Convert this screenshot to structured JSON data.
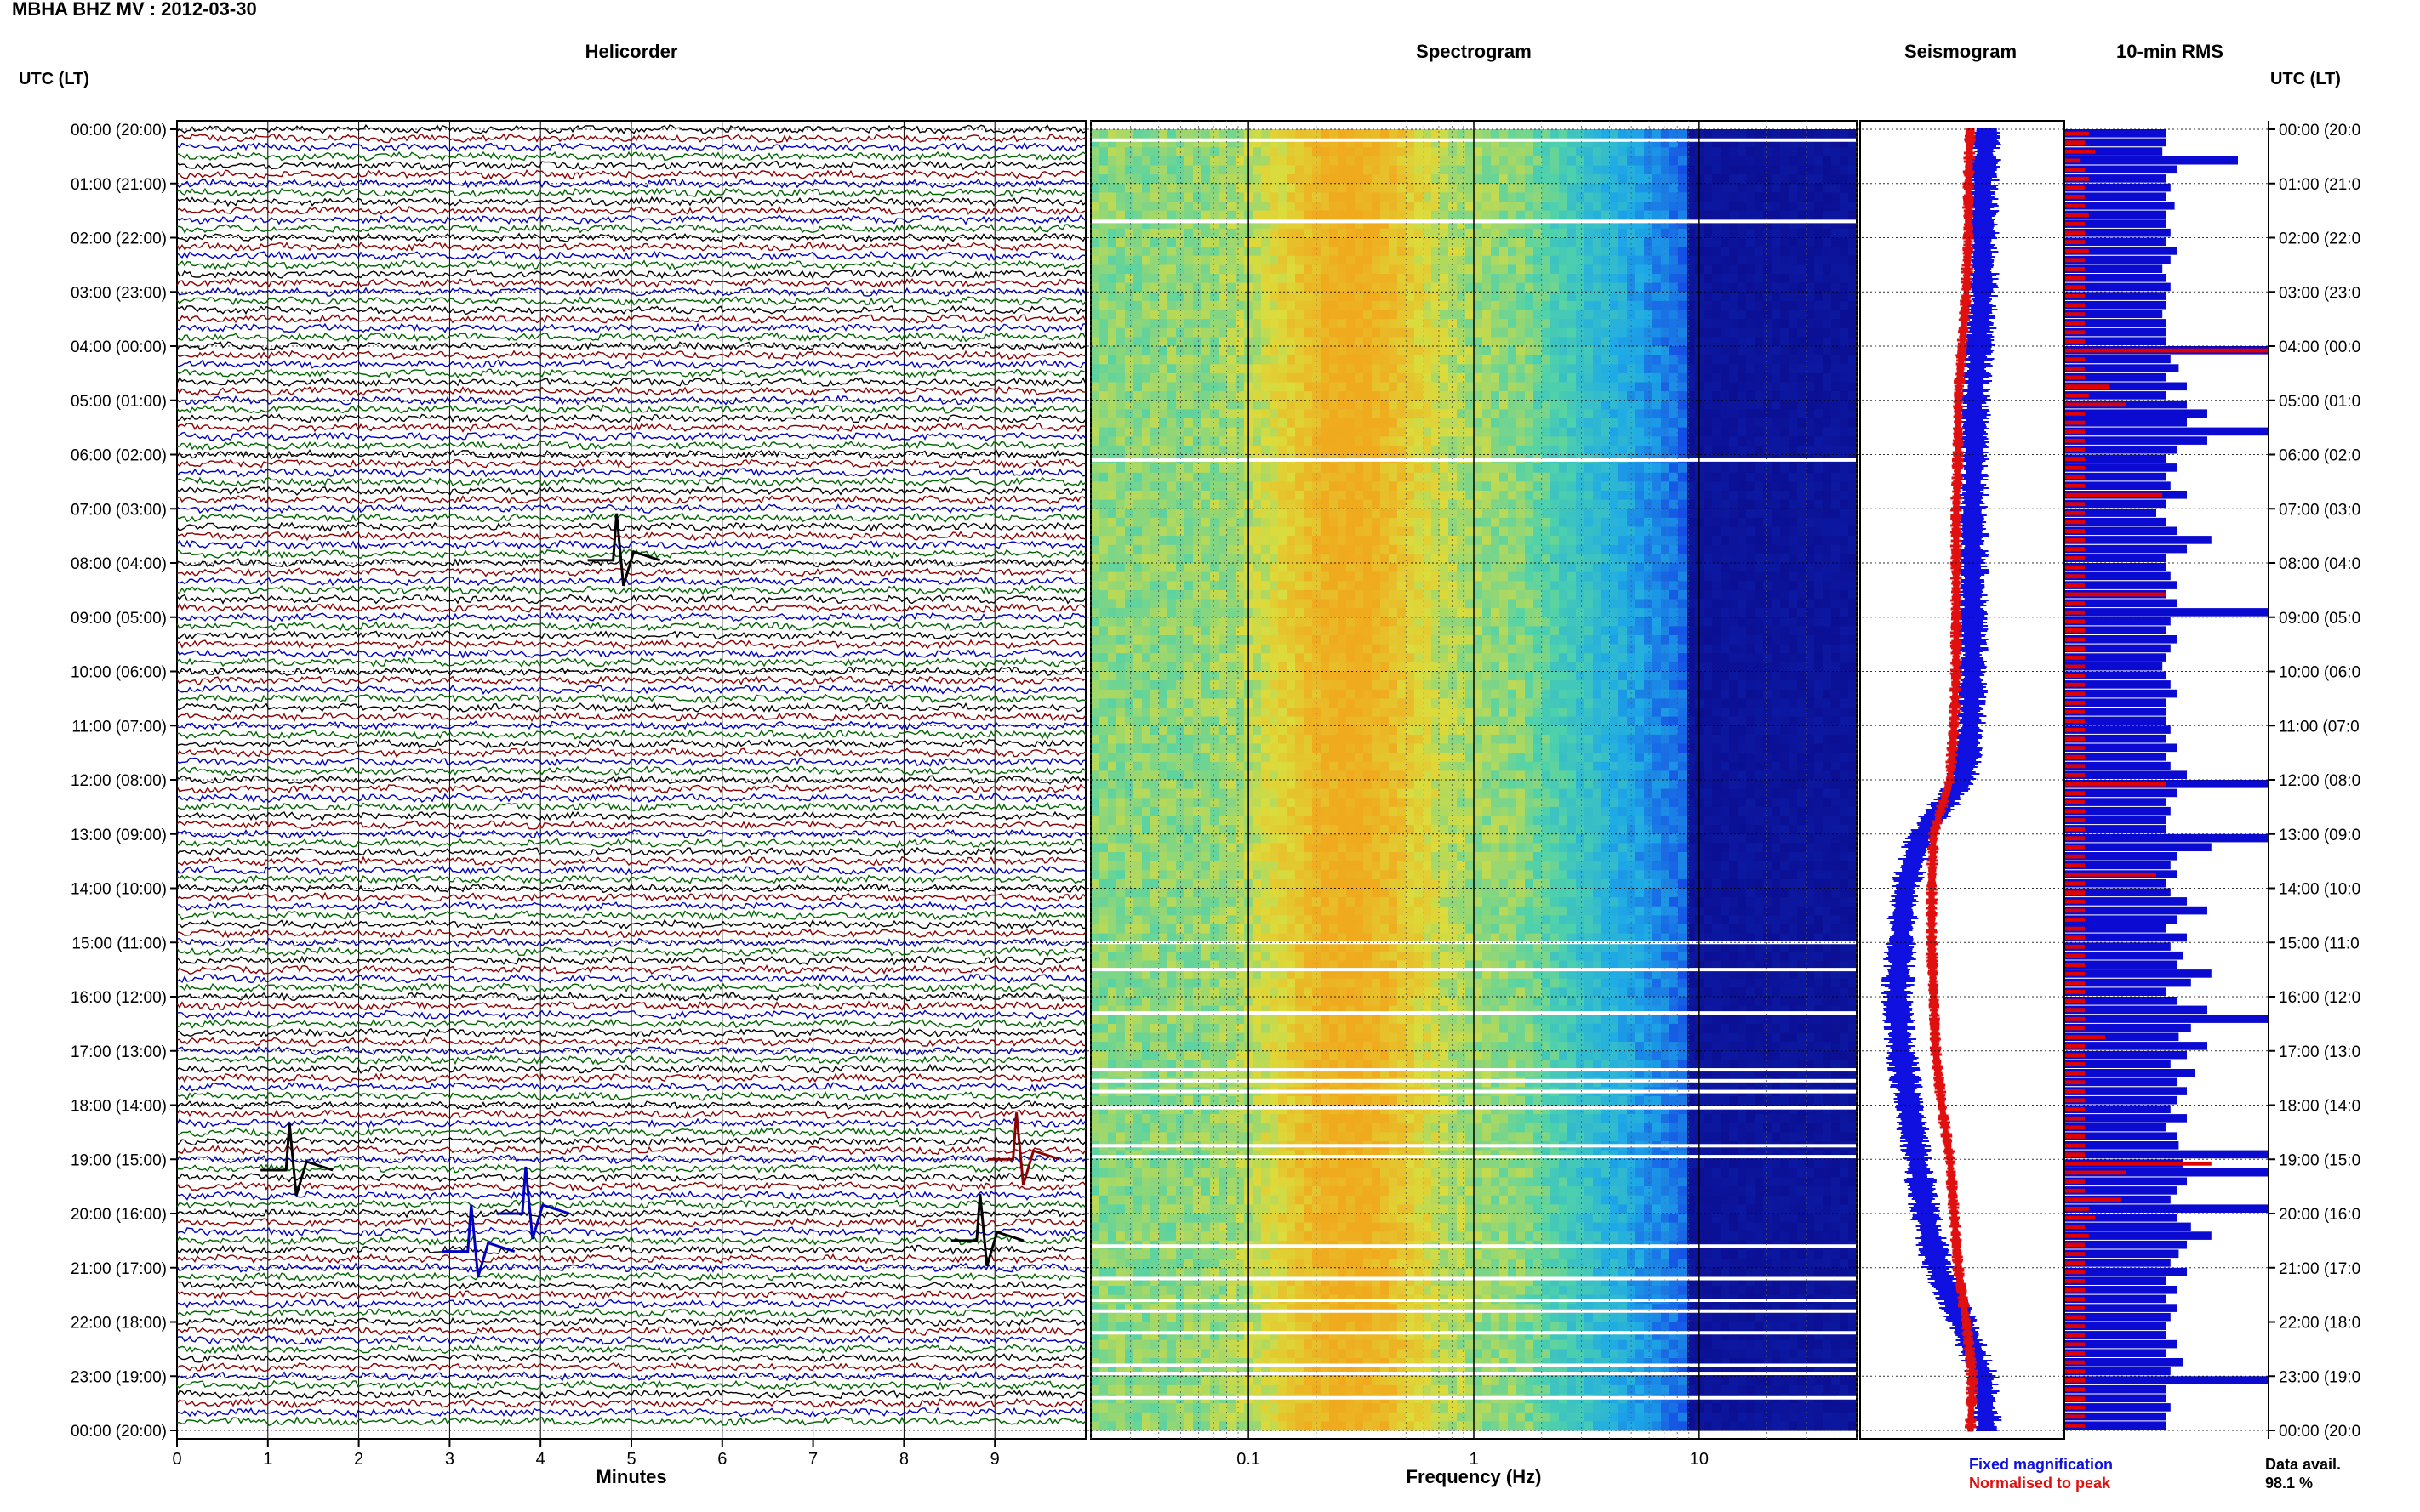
{
  "header": {
    "station_title": "MBHA BHZ MV : 2012-03-30",
    "utc_label_left": "UTC (LT)",
    "utc_label_right": "UTC (LT)"
  },
  "panels": {
    "helicorder_title": "Helicorder",
    "spectrogram_title": "Spectrogram",
    "seismogram_title": "Seismogram",
    "rms_title": "10-min RMS"
  },
  "axes": {
    "helicorder_xlabel": "Minutes",
    "spectrogram_xlabel": "Frequency (Hz)",
    "minute_ticks": [
      "0",
      "1",
      "2",
      "3",
      "4",
      "5",
      "6",
      "7",
      "8",
      "9"
    ],
    "freq_ticks": [
      "0.1",
      "1",
      "10"
    ],
    "time_labels": [
      "00:00 (20:00)",
      "01:00 (21:00)",
      "02:00 (22:00)",
      "03:00 (23:00)",
      "04:00 (00:00)",
      "05:00 (01:00)",
      "06:00 (02:00)",
      "07:00 (03:00)",
      "08:00 (04:00)",
      "09:00 (05:00)",
      "10:00 (06:00)",
      "11:00 (07:00)",
      "12:00 (08:00)",
      "13:00 (09:00)",
      "14:00 (10:00)",
      "15:00 (11:00)",
      "16:00 (12:00)",
      "17:00 (13:00)",
      "18:00 (14:00)",
      "19:00 (15:00)",
      "20:00 (16:00)",
      "21:00 (17:00)",
      "22:00 (18:00)",
      "23:00 (19:00)",
      "00:00 (20:00)"
    ],
    "time_labels_right": [
      "00:00 (20:0",
      "01:00 (21:0",
      "02:00 (22:0",
      "03:00 (23:0",
      "04:00 (00:0",
      "05:00 (01:0",
      "06:00 (02:0",
      "07:00 (03:0",
      "08:00 (04:0",
      "09:00 (05:0",
      "10:00 (06:0",
      "11:00 (07:0",
      "12:00 (08:0",
      "13:00 (09:0",
      "14:00 (10:0",
      "15:00 (11:0",
      "16:00 (12:0",
      "17:00 (13:0",
      "18:00 (14:0",
      "19:00 (15:0",
      "20:00 (16:0",
      "21:00 (17:0",
      "22:00 (18:0",
      "23:00 (19:0",
      "00:00 (20:0"
    ]
  },
  "legend": {
    "fixed": "Fixed magnification",
    "normalised": "Normalised to peak",
    "fixed_color": "#1010e0",
    "normalised_color": "#e01010",
    "avail_label": "Data avail.",
    "avail_value": "98.1 %"
  },
  "colors": {
    "trace_cycle": [
      "#000000",
      "#8b0000",
      "#0000c0",
      "#006400"
    ],
    "rms_fixed": "#0a0ad0",
    "rms_normalised": "#e00000"
  },
  "chart_data": [
    {
      "type": "line",
      "title": "Helicorder",
      "xlabel": "Minutes",
      "xlim": [
        0,
        10
      ],
      "ylim_hours": [
        0,
        24
      ],
      "trace_interval_minutes": 10,
      "traces_count": 144,
      "events": [
        {
          "hour": 19.0,
          "minute": 9.2,
          "color": "#8b0000"
        },
        {
          "hour": 20.0,
          "minute": 3.8,
          "color": "#0000c0"
        },
        {
          "hour": 20.7,
          "minute": 3.2,
          "color": "#0000c0"
        },
        {
          "hour": 20.5,
          "minute": 8.8,
          "color": "#000000"
        },
        {
          "hour": 19.2,
          "minute": 1.2,
          "color": "#000000"
        },
        {
          "hour": 7.95,
          "minute": 4.8,
          "color": "#000000"
        }
      ]
    },
    {
      "type": "heatmap",
      "title": "Spectrogram",
      "xlabel": "Frequency (Hz)",
      "xscale": "log",
      "xlim": [
        0.02,
        50
      ],
      "xticks": [
        0.1,
        1,
        10
      ],
      "ylim_hours": [
        0,
        24
      ],
      "gap_hours": [
        0.2,
        1.7,
        6.1,
        15.0,
        15.5,
        16.3,
        17.35,
        17.55,
        17.75,
        18.05,
        18.75,
        18.95,
        20.6,
        21.2,
        21.6,
        21.8,
        22.2,
        22.8,
        22.95,
        23.4
      ]
    },
    {
      "type": "line",
      "title": "Seismogram",
      "series": [
        {
          "name": "Fixed magnification",
          "x_hours": [
            0,
            1,
            2,
            3,
            4,
            5,
            6,
            7,
            8,
            9,
            10,
            11,
            12,
            13,
            14,
            15,
            16,
            17,
            18,
            19,
            20,
            21,
            22,
            23,
            24
          ],
          "values": [
            0.62,
            0.6,
            0.6,
            0.6,
            0.58,
            0.56,
            0.56,
            0.55,
            0.55,
            0.55,
            0.55,
            0.54,
            0.5,
            0.3,
            0.22,
            0.2,
            0.18,
            0.2,
            0.24,
            0.28,
            0.32,
            0.38,
            0.5,
            0.6,
            0.62
          ]
        },
        {
          "name": "Normalised to peak",
          "x_hours": [
            0,
            1,
            2,
            3,
            4,
            5,
            6,
            7,
            8,
            9,
            10,
            11,
            12,
            13,
            14,
            15,
            16,
            17,
            18,
            19,
            20,
            21,
            22,
            23,
            24
          ],
          "values": [
            0.54,
            0.53,
            0.53,
            0.52,
            0.5,
            0.48,
            0.48,
            0.47,
            0.47,
            0.47,
            0.47,
            0.46,
            0.44,
            0.36,
            0.35,
            0.35,
            0.36,
            0.37,
            0.4,
            0.44,
            0.46,
            0.48,
            0.52,
            0.55,
            0.54
          ]
        }
      ]
    },
    {
      "type": "bar",
      "title": "10-min RMS",
      "bins_per_hour": 6,
      "xlim": [
        0,
        1
      ],
      "fixed_values": [
        0.5,
        0.5,
        0.48,
        0.85,
        0.55,
        0.5,
        0.52,
        0.5,
        0.54,
        0.5,
        0.5,
        0.52,
        0.5,
        0.55,
        0.52,
        0.48,
        0.5,
        0.52,
        0.5,
        0.5,
        0.48,
        0.5,
        0.5,
        0.5,
        1.0,
        0.52,
        0.56,
        0.5,
        0.6,
        0.5,
        0.6,
        0.7,
        0.6,
        1.0,
        0.7,
        0.55,
        0.5,
        0.55,
        0.5,
        0.52,
        0.6,
        0.5,
        0.45,
        0.5,
        0.55,
        0.72,
        0.6,
        0.5,
        0.5,
        0.52,
        0.55,
        0.5,
        0.55,
        1.0,
        0.52,
        0.5,
        0.55,
        0.52,
        0.5,
        0.48,
        0.5,
        0.52,
        0.55,
        0.5,
        0.5,
        0.5,
        0.52,
        0.5,
        0.55,
        0.5,
        0.52,
        0.6,
        1.0,
        0.55,
        0.5,
        0.52,
        0.5,
        0.5,
        1.0,
        0.72,
        0.55,
        0.52,
        0.55,
        0.5,
        0.52,
        0.6,
        0.7,
        0.55,
        0.5,
        0.6,
        0.52,
        0.58,
        0.55,
        0.72,
        0.62,
        0.5,
        0.55,
        0.7,
        1.0,
        0.62,
        0.56,
        0.7,
        0.6,
        0.52,
        0.64,
        0.55,
        0.6,
        0.55,
        0.52,
        0.6,
        0.5,
        0.55,
        0.56,
        1.0,
        0.58,
        1.0,
        0.6,
        0.55,
        0.52,
        1.0,
        0.55,
        0.62,
        0.72,
        0.6,
        0.56,
        0.52,
        0.6,
        0.5,
        0.55,
        0.5,
        0.55,
        0.52,
        0.5,
        0.5,
        0.55,
        0.5,
        0.58,
        0.52,
        1.0,
        0.5,
        0.5,
        0.52,
        0.5,
        0.5
      ],
      "normalised_values": [
        0.12,
        0.1,
        0.15,
        0.08,
        0.1,
        0.12,
        0.1,
        0.1,
        0.1,
        0.12,
        0.1,
        0.1,
        0.1,
        0.12,
        0.1,
        0.1,
        0.1,
        0.1,
        0.1,
        0.1,
        0.1,
        0.1,
        0.1,
        0.1,
        1.0,
        0.1,
        0.1,
        0.1,
        0.22,
        0.12,
        0.3,
        0.1,
        0.1,
        0.1,
        0.1,
        0.1,
        0.1,
        0.1,
        0.1,
        0.1,
        0.48,
        0.1,
        0.1,
        0.1,
        0.1,
        0.1,
        0.1,
        0.1,
        0.1,
        0.1,
        0.1,
        0.5,
        0.1,
        0.1,
        0.1,
        0.1,
        0.1,
        0.1,
        0.1,
        0.1,
        0.1,
        0.1,
        0.1,
        0.1,
        0.1,
        0.1,
        0.1,
        0.1,
        0.1,
        0.1,
        0.1,
        0.1,
        0.5,
        0.1,
        0.1,
        0.1,
        0.1,
        0.1,
        0.1,
        0.1,
        0.1,
        0.1,
        0.45,
        0.1,
        0.1,
        0.1,
        0.1,
        0.1,
        0.1,
        0.1,
        0.1,
        0.1,
        0.1,
        0.1,
        0.1,
        0.1,
        0.1,
        0.1,
        0.1,
        0.1,
        0.2,
        0.1,
        0.1,
        0.1,
        0.1,
        0.1,
        0.1,
        0.1,
        0.1,
        0.1,
        0.1,
        0.1,
        0.1,
        0.1,
        0.72,
        0.3,
        0.1,
        0.1,
        0.28,
        0.12,
        0.15,
        0.1,
        0.12,
        0.1,
        0.1,
        0.1,
        0.1,
        0.1,
        0.1,
        0.1,
        0.1,
        0.1,
        0.1,
        0.1,
        0.1,
        0.1,
        0.1,
        0.1,
        0.1,
        0.1,
        0.1,
        0.1,
        0.1,
        0.1
      ]
    }
  ]
}
